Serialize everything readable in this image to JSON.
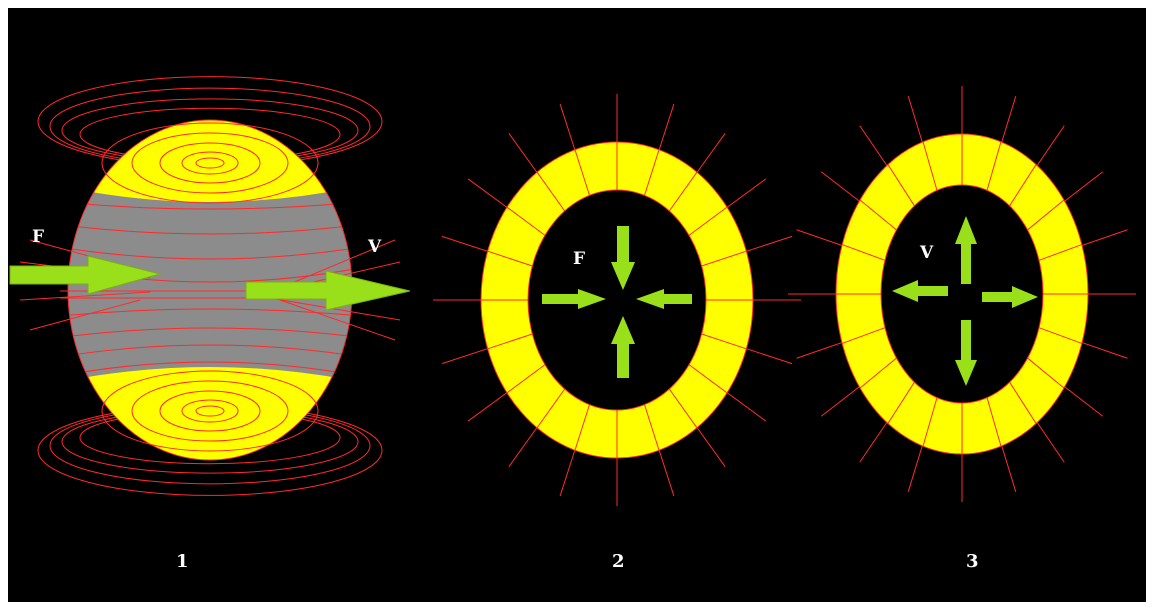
{
  "colors": {
    "background": "#000000",
    "frame": "#ffffff",
    "field_line": "#ff2a2a",
    "sphere_cap": "#ffff00",
    "sphere_band": "#8c8c8c",
    "ring": "#ffff00",
    "arrow": "#99e01a",
    "text": "#ffffff"
  },
  "figures": [
    {
      "number": "1",
      "description_labels": {
        "force": "F",
        "velocity": "V"
      },
      "arrows": [
        "arrow-icon-right",
        "arrow-icon-right"
      ]
    },
    {
      "number": "2",
      "description_labels": {
        "force": "F"
      },
      "arrows_direction": "inward"
    },
    {
      "number": "3",
      "description_labels": {
        "velocity": "V"
      },
      "arrows_direction": "outward"
    }
  ]
}
